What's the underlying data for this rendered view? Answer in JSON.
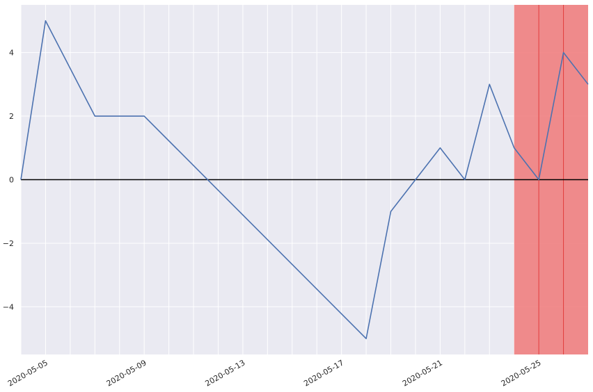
{
  "chart_data": {
    "type": "line",
    "title": "",
    "xlabel": "",
    "ylabel": "",
    "x": [
      "2020-05-04",
      "2020-05-05",
      "2020-05-06",
      "2020-05-07",
      "2020-05-08",
      "2020-05-09",
      "2020-05-10",
      "2020-05-11",
      "2020-05-12",
      "2020-05-13",
      "2020-05-14",
      "2020-05-15",
      "2020-05-16",
      "2020-05-17",
      "2020-05-18",
      "2020-05-19",
      "2020-05-20",
      "2020-05-21",
      "2020-05-22",
      "2020-05-23",
      "2020-05-24",
      "2020-05-25",
      "2020-05-26",
      "2020-05-27"
    ],
    "series": [
      {
        "values": [
          0,
          5,
          null,
          2,
          null,
          2,
          null,
          null,
          null,
          null,
          null,
          null,
          null,
          null,
          -5,
          -1,
          null,
          1,
          0,
          3,
          1,
          0,
          4,
          3
        ],
        "color": "#4c72b0"
      }
    ],
    "xlim": [
      "2020-05-04",
      "2020-05-27"
    ],
    "ylim": [
      -5.5,
      5.5
    ],
    "x_ticks": [
      "2020-05-05",
      "2020-05-09",
      "2020-05-13",
      "2020-05-17",
      "2020-05-21",
      "2020-05-25"
    ],
    "y_ticks": [
      -4,
      -2,
      0,
      2,
      4
    ],
    "y_tick_labels": [
      "−4",
      "−2",
      "0",
      "2",
      "4"
    ],
    "grid": true,
    "legend": "none",
    "zero_line": {
      "value": 0,
      "color": "#000000"
    },
    "shaded_region": {
      "x_start": "2020-05-24",
      "x_end": "2020-05-27",
      "color": "#f08080"
    },
    "region_lines": {
      "x": [
        "2020-05-25",
        "2020-05-26"
      ],
      "color": "#e03c3c"
    },
    "background": "#eaeaf2"
  }
}
